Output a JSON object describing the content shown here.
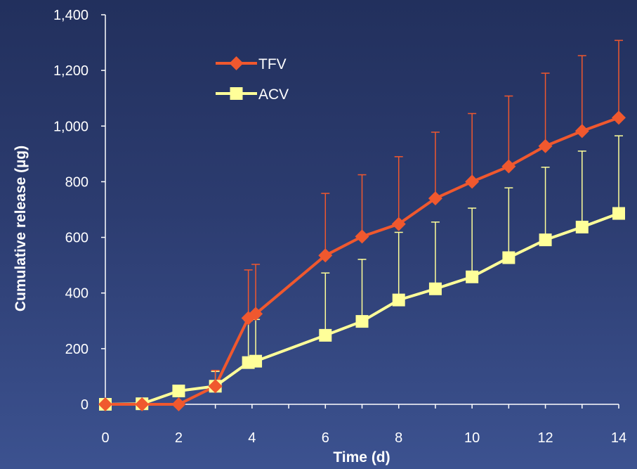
{
  "chart_data": {
    "type": "line",
    "title": "",
    "xlabel": "Time (d)",
    "ylabel": "Cumulative release (µg)",
    "xlim": [
      0,
      14
    ],
    "ylim": [
      0,
      1400
    ],
    "xticks": [
      0,
      2,
      4,
      6,
      8,
      10,
      12,
      14
    ],
    "xtick_labels": [
      "0",
      "2",
      "4",
      "6",
      "8",
      "10",
      "12",
      "14"
    ],
    "yticks": [
      0,
      200,
      400,
      600,
      800,
      1000,
      1200,
      1400
    ],
    "ytick_labels": [
      "0",
      "200",
      "400",
      "600",
      "800",
      "1,000",
      "1,200",
      "1,400"
    ],
    "grid": false,
    "legend_position": "top-left",
    "series": [
      {
        "name": "TFV",
        "color": "#f0582e",
        "marker": "diamond",
        "x": [
          0,
          1,
          2,
          3,
          3.9,
          4.1,
          6,
          7,
          8,
          9,
          10,
          11,
          12,
          13,
          14
        ],
        "y": [
          0,
          0,
          0,
          65,
          310,
          325,
          535,
          603,
          648,
          740,
          800,
          855,
          928,
          982,
          1030
        ],
        "error_upper": [
          null,
          null,
          null,
          122,
          483,
          503,
          758,
          825,
          890,
          978,
          1045,
          1108,
          1190,
          1253,
          1308
        ]
      },
      {
        "name": "ACV",
        "color": "#ffff99",
        "marker": "square",
        "x": [
          0,
          1,
          2,
          3,
          3.9,
          4.1,
          6,
          7,
          8,
          9,
          10,
          11,
          12,
          13,
          14
        ],
        "y": [
          0,
          2,
          48,
          65,
          150,
          155,
          248,
          298,
          375,
          415,
          458,
          527,
          591,
          637,
          686
        ],
        "error_upper": [
          null,
          null,
          null,
          118,
          300,
          305,
          472,
          521,
          618,
          655,
          705,
          778,
          852,
          910,
          965
        ]
      }
    ]
  }
}
